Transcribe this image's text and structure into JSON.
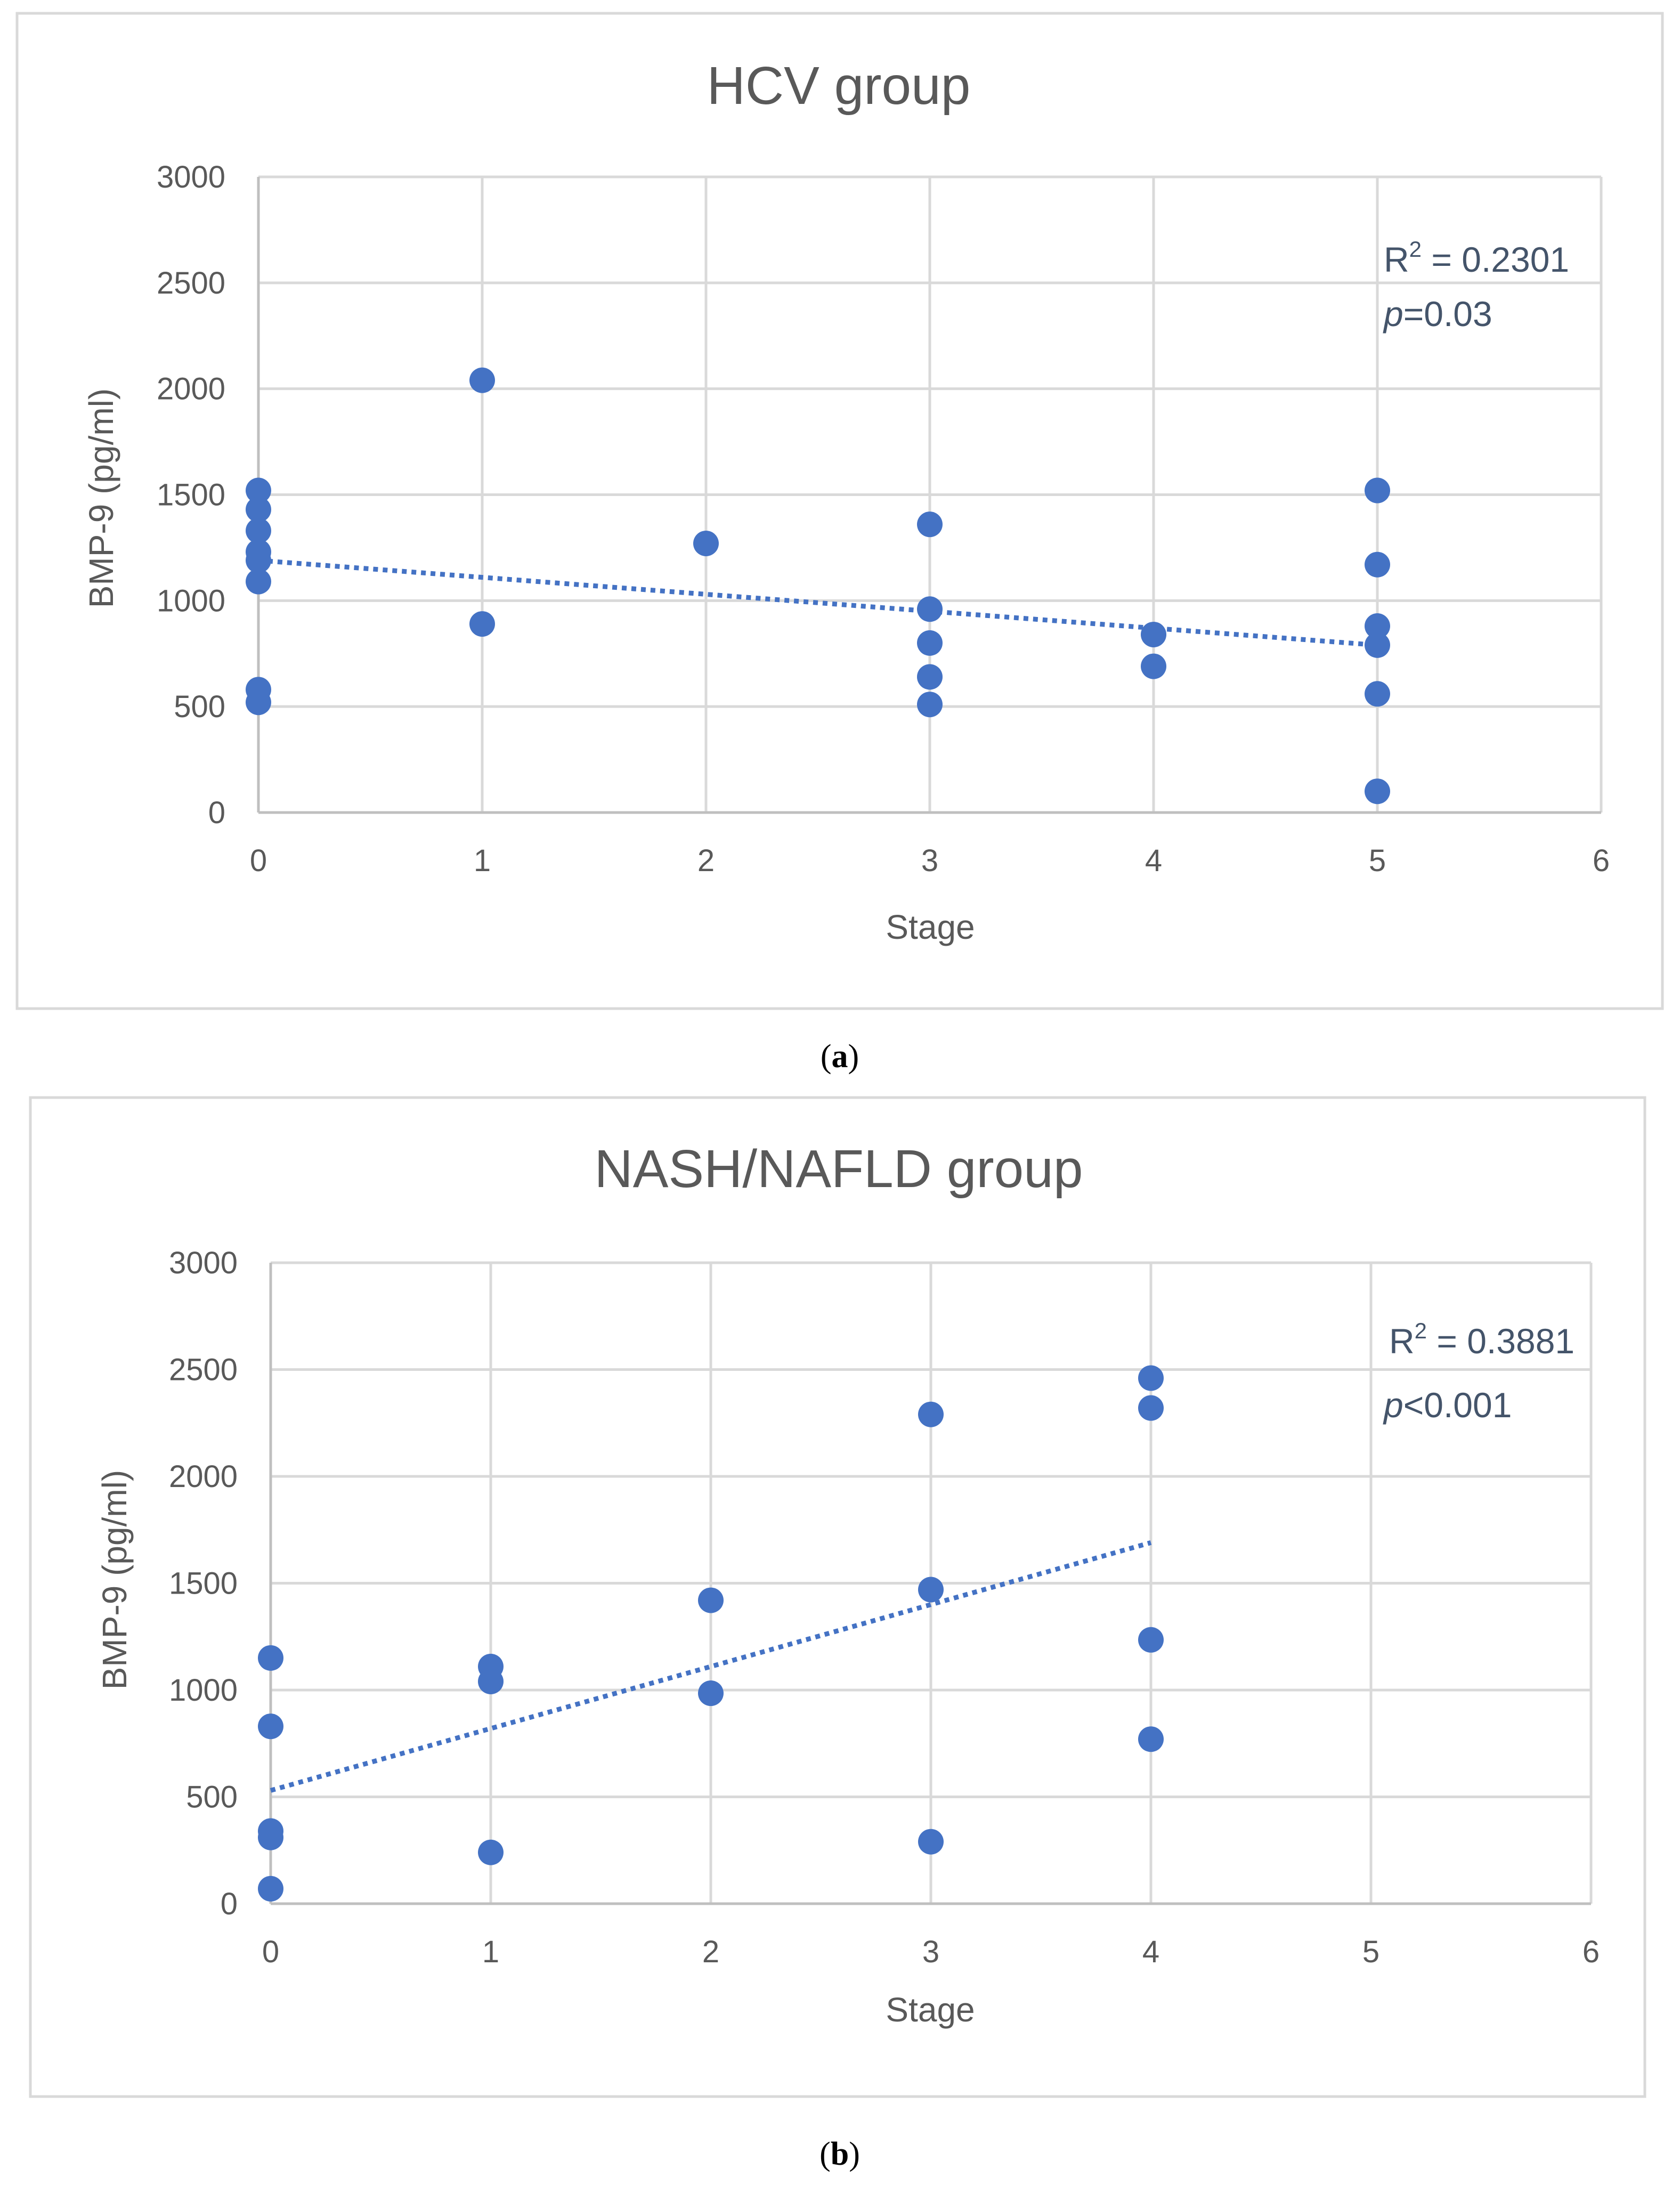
{
  "colors": {
    "marker": "#4472C4",
    "trendline": "#4472C4",
    "grid": "#D9D9D9",
    "axis": "#BFBFBF",
    "frame": "#D9D9D9"
  },
  "chart_data": [
    {
      "type": "scatter",
      "title": "HCV group",
      "caption": {
        "open": "(",
        "letter": "a",
        "close": ")"
      },
      "xlabel": "Stage",
      "ylabel": "BMP-9 (pg/ml)",
      "xlim": [
        0,
        6
      ],
      "ylim": [
        0,
        3000
      ],
      "xticks": [
        0,
        1,
        2,
        3,
        4,
        5,
        6
      ],
      "yticks": [
        0,
        500,
        1000,
        1500,
        2000,
        2500,
        3000
      ],
      "grid": true,
      "points": [
        [
          0,
          1520
        ],
        [
          0,
          1430
        ],
        [
          0,
          1330
        ],
        [
          0,
          1230
        ],
        [
          0,
          1190
        ],
        [
          0,
          1090
        ],
        [
          0,
          580
        ],
        [
          0,
          520
        ],
        [
          1,
          2040
        ],
        [
          1,
          890
        ],
        [
          2,
          1270
        ],
        [
          3,
          1360
        ],
        [
          3,
          960
        ],
        [
          3,
          800
        ],
        [
          3,
          640
        ],
        [
          3,
          510
        ],
        [
          4,
          840
        ],
        [
          4,
          690
        ],
        [
          5,
          1520
        ],
        [
          5,
          1170
        ],
        [
          5,
          880
        ],
        [
          5,
          790
        ],
        [
          5,
          560
        ],
        [
          5,
          100
        ]
      ],
      "trendline": {
        "x": [
          0,
          5
        ],
        "y": [
          1190,
          790
        ]
      },
      "annotation": {
        "r2_prefix": "R",
        "r2_sup": "2",
        "r2_value": " = 0.2301",
        "p_symbol": "p",
        "p_value": "=0.03"
      }
    },
    {
      "type": "scatter",
      "title": "NASH/NAFLD group",
      "caption": {
        "open": "(",
        "letter": "b",
        "close": ")"
      },
      "xlabel": "Stage",
      "ylabel": "BMP-9 (pg/ml)",
      "xlim": [
        0,
        6
      ],
      "ylim": [
        0,
        3000
      ],
      "xticks": [
        0,
        1,
        2,
        3,
        4,
        5,
        6
      ],
      "yticks": [
        0,
        500,
        1000,
        1500,
        2000,
        2500,
        3000
      ],
      "grid": true,
      "points": [
        [
          0,
          1150
        ],
        [
          0,
          830
        ],
        [
          0,
          340
        ],
        [
          0,
          310
        ],
        [
          0,
          70
        ],
        [
          1,
          1110
        ],
        [
          1,
          1040
        ],
        [
          1,
          240
        ],
        [
          2,
          1420
        ],
        [
          2,
          985
        ],
        [
          3,
          2290
        ],
        [
          3,
          1470
        ],
        [
          3,
          290
        ],
        [
          4,
          2460
        ],
        [
          4,
          2320
        ],
        [
          4,
          1235
        ],
        [
          4,
          770
        ]
      ],
      "trendline": {
        "x": [
          0,
          4
        ],
        "y": [
          530,
          1690
        ]
      },
      "annotation": {
        "r2_prefix": "R",
        "r2_sup": "2",
        "r2_value": " = 0.3881",
        "p_symbol": "p",
        "p_value": "<0.001"
      }
    }
  ]
}
